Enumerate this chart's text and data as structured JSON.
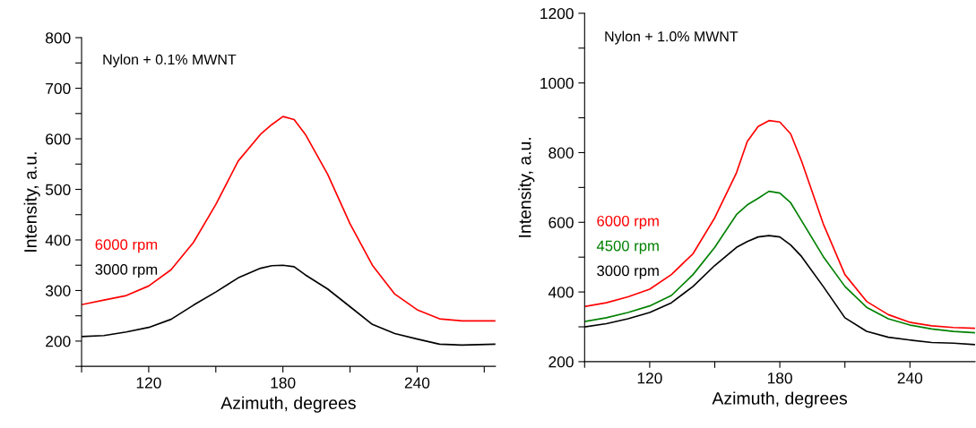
{
  "chart_data": [
    {
      "type": "line",
      "xlabel": "Azimuth, degrees",
      "ylabel": "Intensity, a.u.",
      "x": [
        90,
        100,
        110,
        120,
        130,
        140,
        150,
        160,
        170,
        175,
        180,
        185,
        190,
        200,
        210,
        220,
        230,
        240,
        250,
        260,
        275
      ],
      "series": [
        {
          "name": "6000 rpm",
          "color": "#ff0000",
          "values": [
            272,
            281,
            290,
            309,
            341,
            395,
            470,
            556,
            609,
            628,
            644,
            638,
            609,
            530,
            432,
            350,
            293,
            262,
            244,
            240,
            240
          ]
        },
        {
          "name": "3000 rpm",
          "color": "#000000",
          "values": [
            209,
            211,
            218,
            227,
            243,
            271,
            297,
            325,
            344,
            349,
            350,
            347,
            331,
            303,
            268,
            233,
            215,
            204,
            194,
            192,
            194
          ]
        }
      ],
      "annotations": [
        "Nylon + 0.1% MWNT"
      ],
      "xlim": [
        90,
        275
      ],
      "ylim": [
        150,
        800
      ],
      "xticks": [
        {
          "value": 90,
          "label": null
        },
        120,
        {
          "value": 150,
          "label": null
        },
        180,
        {
          "value": 210,
          "label": null
        },
        240,
        {
          "value": 270,
          "label": null
        }
      ],
      "yticks": [
        {
          "value": 150,
          "label": null
        },
        200,
        {
          "value": 250,
          "label": null
        },
        300,
        {
          "value": 350,
          "label": null
        },
        400,
        {
          "value": 450,
          "label": null
        },
        500,
        {
          "value": 550,
          "label": null
        },
        600,
        {
          "value": 650,
          "label": null
        },
        700,
        {
          "value": 750,
          "label": null
        },
        800
      ],
      "grid": false,
      "legend": false,
      "marker": "none",
      "line_style": "solid"
    },
    {
      "type": "line",
      "xlabel": "Azimuth, degrees",
      "ylabel": "Intensity, a.u.",
      "x": [
        90,
        100,
        110,
        120,
        130,
        140,
        150,
        160,
        165,
        170,
        175,
        180,
        185,
        190,
        200,
        210,
        220,
        230,
        240,
        250,
        260,
        270
      ],
      "series": [
        {
          "name": "6000 rpm",
          "color": "#ff0000",
          "values": [
            358,
            369,
            386,
            408,
            450,
            510,
            613,
            742,
            832,
            875,
            892,
            888,
            854,
            776,
            596,
            450,
            373,
            335,
            313,
            303,
            298,
            296
          ]
        },
        {
          "name": "4500 rpm",
          "color": "#008000",
          "values": [
            315,
            326,
            341,
            360,
            390,
            450,
            528,
            622,
            650,
            669,
            689,
            684,
            656,
            605,
            502,
            416,
            356,
            323,
            305,
            294,
            287,
            283
          ]
        },
        {
          "name": "3000 rpm",
          "color": "#000000",
          "values": [
            300,
            309,
            323,
            341,
            369,
            416,
            476,
            528,
            545,
            558,
            562,
            558,
            535,
            502,
            416,
            326,
            287,
            270,
            262,
            255,
            253,
            249
          ]
        }
      ],
      "annotations": [
        "Nylon + 1.0% MWNT"
      ],
      "xlim": [
        90,
        270
      ],
      "ylim": [
        200,
        1200
      ],
      "xticks": [
        {
          "value": 90,
          "label": null
        },
        120,
        {
          "value": 150,
          "label": null
        },
        180,
        {
          "value": 210,
          "label": null
        },
        240
      ],
      "yticks": [
        200,
        {
          "value": 300,
          "label": null
        },
        400,
        {
          "value": 500,
          "label": null
        },
        600,
        {
          "value": 700,
          "label": null
        },
        800,
        {
          "value": 900,
          "label": null
        },
        1000,
        {
          "value": 1100,
          "label": null
        },
        1200
      ],
      "grid": false,
      "legend": false,
      "marker": "none",
      "line_style": "solid"
    }
  ]
}
